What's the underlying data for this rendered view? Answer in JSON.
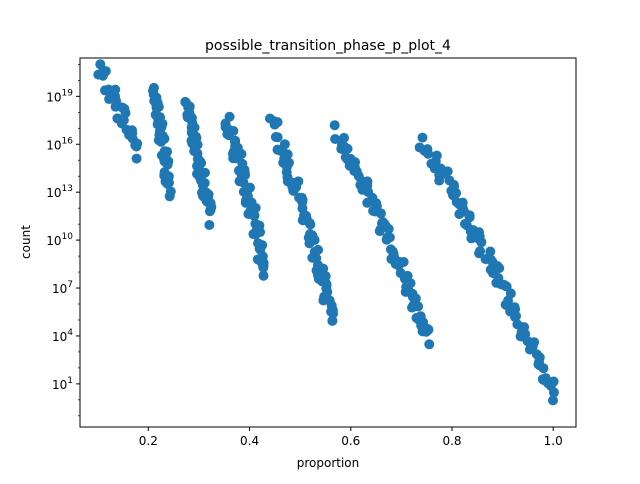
{
  "chart_data": {
    "type": "scatter",
    "title": "possible_transition_phase_p_plot_4",
    "xlabel": "proportion",
    "ylabel": "count",
    "y_scale": "log",
    "xlim": [
      0.065,
      1.045
    ],
    "ylim_log10": [
      -1.7,
      21.4
    ],
    "x_ticks": [
      0.2,
      0.4,
      0.6,
      0.8,
      1.0
    ],
    "x_tick_labels": [
      "0.2",
      "0.4",
      "0.6",
      "0.8",
      "1.0"
    ],
    "y_ticks_log10": [
      1,
      4,
      7,
      10,
      13,
      16,
      19
    ],
    "y_tick_labels": [
      {
        "base": "10",
        "exp": "1"
      },
      {
        "base": "10",
        "exp": "4"
      },
      {
        "base": "10",
        "exp": "7"
      },
      {
        "base": "10",
        "exp": "10"
      },
      {
        "base": "10",
        "exp": "13"
      },
      {
        "base": "10",
        "exp": "16"
      },
      {
        "base": "10",
        "exp": "19"
      }
    ],
    "marker_color": "#1f77b4",
    "grid": false,
    "clusters": [
      {
        "x_start": 0.1,
        "x_end": 0.18,
        "log_y_top": 20.6,
        "log_y_bottom": 15.6,
        "n": 30
      },
      {
        "x_start": 0.21,
        "x_end": 0.24,
        "log_y_top": 19.5,
        "log_y_bottom": 13.2,
        "n": 45
      },
      {
        "x_start": 0.275,
        "x_end": 0.32,
        "log_y_top": 18.5,
        "log_y_bottom": 11.5,
        "n": 55
      },
      {
        "x_start": 0.35,
        "x_end": 0.43,
        "log_y_top": 17.8,
        "log_y_bottom": 8.2,
        "n": 60
      },
      {
        "x_start": 0.445,
        "x_end": 0.565,
        "log_y_top": 17.2,
        "log_y_bottom": 5.2,
        "n": 70
      },
      {
        "x_start": 0.57,
        "x_end": 0.755,
        "log_y_top": 16.6,
        "log_y_bottom": 3.9,
        "n": 80
      },
      {
        "x_start": 0.735,
        "x_end": 1.0,
        "log_y_top": 16.1,
        "log_y_bottom": 0.3,
        "n": 90
      }
    ]
  }
}
